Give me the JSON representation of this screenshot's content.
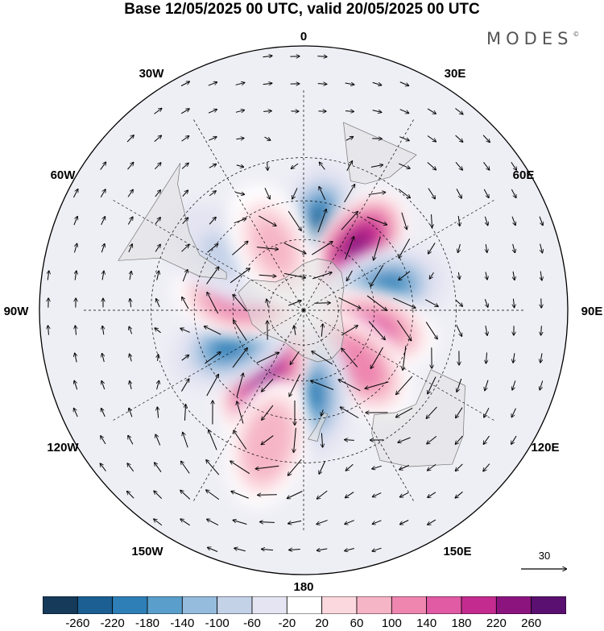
{
  "title": "Base 12/05/2025 00 UTC, valid 20/05/2025 00 UTC",
  "brand": {
    "text": "MODES",
    "mark": "©"
  },
  "longitude_labels": [
    "0",
    "30E",
    "60E",
    "90E",
    "120E",
    "150E",
    "180",
    "150W",
    "120W",
    "90W",
    "60W",
    "30W"
  ],
  "reference_vector": {
    "label": "30",
    "icon": "arrow-right-icon"
  },
  "colorbar": {
    "ticks": [
      "-260",
      "-220",
      "-180",
      "-140",
      "-100",
      "-60",
      "-20",
      "20",
      "60",
      "100",
      "140",
      "180",
      "220",
      "260"
    ],
    "colors": [
      "#163a59",
      "#1b5f93",
      "#2e7fb7",
      "#5a9fcb",
      "#95bbdd",
      "#c4d2e8",
      "#e4e4f2",
      "#ffffff",
      "#fbd8de",
      "#f6b5c6",
      "#ee86b0",
      "#e05aa4",
      "#c42b8f",
      "#8b147f",
      "#5a1070"
    ]
  },
  "chart_data": {
    "type": "heatmap",
    "projection": "south-polar-stereographic",
    "field": "anomaly",
    "levels": [
      -260,
      -220,
      -180,
      -140,
      -100,
      -60,
      -20,
      20,
      60,
      100,
      140,
      180,
      220,
      260
    ],
    "features": [
      {
        "lon": 10,
        "lat": -55,
        "value": -220
      },
      {
        "lon": 40,
        "lat": -55,
        "value": 250
      },
      {
        "lon": 75,
        "lat": -55,
        "value": -200
      },
      {
        "lon": 105,
        "lat": -60,
        "value": 150
      },
      {
        "lon": 135,
        "lat": -58,
        "value": 130
      },
      {
        "lon": 175,
        "lat": -55,
        "value": -190
      },
      {
        "lon": -150,
        "lat": -57,
        "value": 250
      },
      {
        "lon": -115,
        "lat": -57,
        "value": -190
      },
      {
        "lon": -80,
        "lat": -62,
        "value": 140
      },
      {
        "lon": -55,
        "lat": -50,
        "value": -60
      },
      {
        "lon": -25,
        "lat": -60,
        "value": 70
      },
      {
        "lon": -165,
        "lat": -35,
        "value": 100
      }
    ],
    "vector_field": "wind",
    "reference_vector_magnitude": 30
  }
}
